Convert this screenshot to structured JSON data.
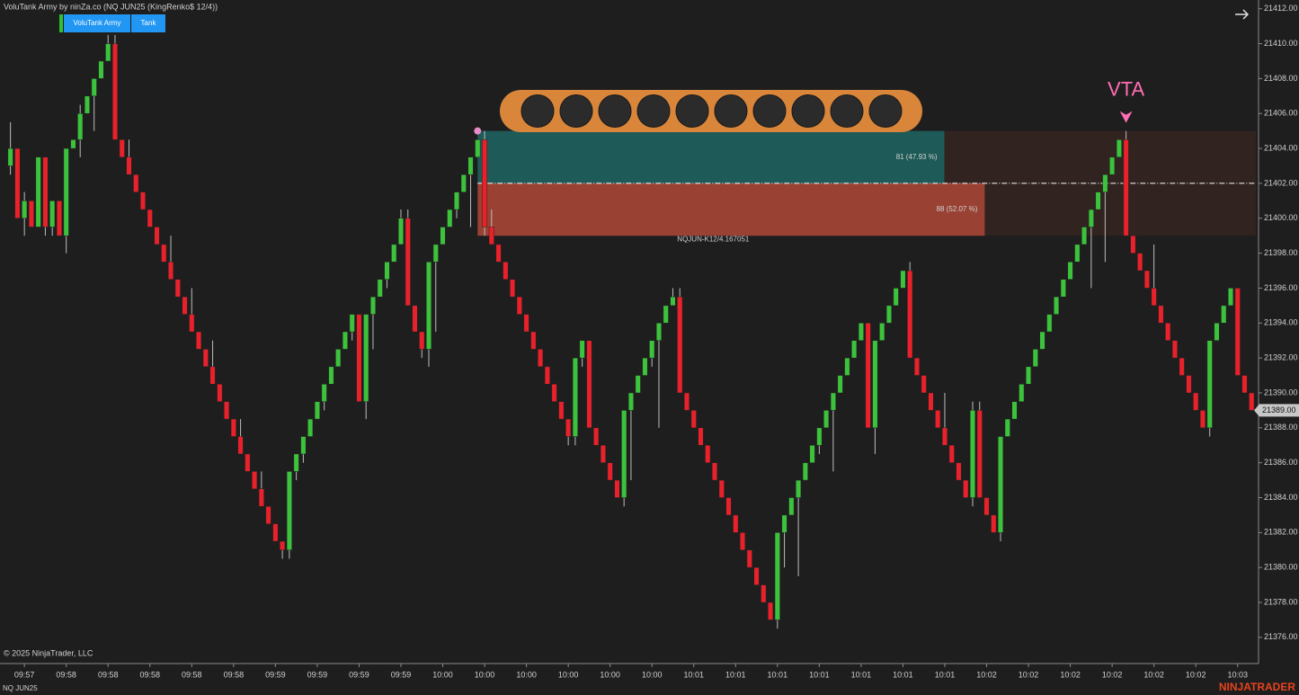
{
  "chart_data": {
    "type": "candlestick",
    "title": "VoluTank Army by ninZa.co (NQ JUN25 (KingRenko$ 12/4))",
    "buttons": [
      "VoluTank Army",
      "Tank"
    ],
    "copyright": "© 2025 NinjaTrader, LLC",
    "instrument": "NQ JUN25",
    "brand": "NINJATRADER",
    "up_color": "#3cc23c",
    "down_color": "#e8212b",
    "ylim": [
      21374.5,
      21412.5
    ],
    "yticks": [
      {
        "value": 21376,
        "label": "21376.00"
      },
      {
        "value": 21378,
        "label": "21378.00"
      },
      {
        "value": 21380,
        "label": "21380.00"
      },
      {
        "value": 21382,
        "label": "21382.00"
      },
      {
        "value": 21384,
        "label": "21384.00"
      },
      {
        "value": 21386,
        "label": "21386.00"
      },
      {
        "value": 21388,
        "label": "21388.00"
      },
      {
        "value": 21390,
        "label": "21390.00"
      },
      {
        "value": 21392,
        "label": "21392.00"
      },
      {
        "value": 21394,
        "label": "21394.00"
      },
      {
        "value": 21396,
        "label": "21396.00"
      },
      {
        "value": 21398,
        "label": "21398.00"
      },
      {
        "value": 21400,
        "label": "21400.00"
      },
      {
        "value": 21402,
        "label": "21402.00"
      },
      {
        "value": 21404,
        "label": "21404.00"
      },
      {
        "value": 21406,
        "label": "21406.00"
      },
      {
        "value": 21408,
        "label": "21408.00"
      },
      {
        "value": 21410,
        "label": "21410.00"
      },
      {
        "value": 21412,
        "label": "21412.00"
      }
    ],
    "xlim": [
      -1.5,
      179
    ],
    "xticks": [
      {
        "value": 2,
        "label": "09:57"
      },
      {
        "value": 8,
        "label": "09:58"
      },
      {
        "value": 14,
        "label": "09:58"
      },
      {
        "value": 20,
        "label": "09:58"
      },
      {
        "value": 26,
        "label": "09:58"
      },
      {
        "value": 32,
        "label": "09:58"
      },
      {
        "value": 38,
        "label": "09:59"
      },
      {
        "value": 44,
        "label": "09:59"
      },
      {
        "value": 50,
        "label": "09:59"
      },
      {
        "value": 56,
        "label": "09:59"
      },
      {
        "value": 62,
        "label": "10:00"
      },
      {
        "value": 68,
        "label": "10:00"
      },
      {
        "value": 74,
        "label": "10:00"
      },
      {
        "value": 80,
        "label": "10:00"
      },
      {
        "value": 86,
        "label": "10:00"
      },
      {
        "value": 92,
        "label": "10:00"
      },
      {
        "value": 98,
        "label": "10:01"
      },
      {
        "value": 104,
        "label": "10:01"
      },
      {
        "value": 110,
        "label": "10:01"
      },
      {
        "value": 116,
        "label": "10:01"
      },
      {
        "value": 122,
        "label": "10:01"
      },
      {
        "value": 128,
        "label": "10:01"
      },
      {
        "value": 134,
        "label": "10:01"
      },
      {
        "value": 140,
        "label": "10:02"
      },
      {
        "value": 146,
        "label": "10:02"
      },
      {
        "value": 152,
        "label": "10:02"
      },
      {
        "value": 158,
        "label": "10:02"
      },
      {
        "value": 164,
        "label": "10:02"
      },
      {
        "value": 170,
        "label": "10:02"
      },
      {
        "value": 176,
        "label": "10:03"
      }
    ],
    "last_price": {
      "value": 21389,
      "label": "21389.00"
    },
    "zone": {
      "start": 67,
      "top": 21405,
      "mid": 21402,
      "bottom": 21399,
      "buy": {
        "value": 81,
        "label": "81 (47.93 %)"
      },
      "sell": {
        "value": 88,
        "label": "88 (52.07 %)"
      },
      "name": "NQJUN-K12/4.167051"
    },
    "signals": [
      {
        "label": "VTA",
        "at": 160
      }
    ],
    "ohlc": [
      [
        21403,
        21405.5,
        21402.5,
        21404
      ],
      [
        21404,
        21404,
        21400,
        21400
      ],
      [
        21400,
        21401.5,
        21399,
        21401
      ],
      [
        21401,
        21401,
        21399.5,
        21399.5
      ],
      [
        21399.5,
        21403.5,
        21399.5,
        21403.5
      ],
      [
        21403.5,
        21403.5,
        21399,
        21399.5
      ],
      [
        21399.5,
        21401,
        21399,
        21401
      ],
      [
        21401,
        21401,
        21399,
        21399
      ],
      [
        21399,
        21404,
        21398,
        21404
      ],
      [
        21404,
        21404.5,
        21404,
        21404.5
      ],
      [
        21404.5,
        21406.5,
        21403.5,
        21406
      ],
      [
        21406,
        21407,
        21406,
        21407
      ],
      [
        21407,
        21408,
        21405,
        21408
      ],
      [
        21408,
        21409,
        21408,
        21409
      ],
      [
        21409,
        21410.5,
        21409,
        21410
      ],
      [
        21410,
        21410.5,
        21404.5,
        21404.5
      ],
      [
        21404.5,
        21404.5,
        21403.5,
        21403.5
      ],
      [
        21403.5,
        21404.5,
        21402.5,
        21402.5
      ],
      [
        21402.5,
        21402.5,
        21401.5,
        21401.5
      ],
      [
        21401.5,
        21401.5,
        21400.5,
        21400.5
      ],
      [
        21400.5,
        21400.5,
        21399.5,
        21399.5
      ],
      [
        21399.5,
        21399.5,
        21398.5,
        21398.5
      ],
      [
        21398.5,
        21398.5,
        21397.5,
        21397.5
      ],
      [
        21397.5,
        21399,
        21396.5,
        21396.5
      ],
      [
        21396.5,
        21396.5,
        21395.5,
        21395.5
      ],
      [
        21395.5,
        21395.5,
        21394.5,
        21394.5
      ],
      [
        21394.5,
        21396,
        21393.5,
        21393.5
      ],
      [
        21393.5,
        21393.5,
        21392.5,
        21392.5
      ],
      [
        21392.5,
        21392.5,
        21391.5,
        21391.5
      ],
      [
        21391.5,
        21393,
        21390.5,
        21390.5
      ],
      [
        21390.5,
        21390.5,
        21389.5,
        21389.5
      ],
      [
        21389.5,
        21389.5,
        21388.5,
        21388.5
      ],
      [
        21388.5,
        21388.5,
        21387.5,
        21387.5
      ],
      [
        21387.5,
        21388.5,
        21386.5,
        21386.5
      ],
      [
        21386.5,
        21386.5,
        21385.5,
        21385.5
      ],
      [
        21385.5,
        21385.5,
        21384.5,
        21384.5
      ],
      [
        21384.5,
        21385.5,
        21383.5,
        21383.5
      ],
      [
        21383.5,
        21383.5,
        21382.5,
        21382.5
      ],
      [
        21382.5,
        21382.5,
        21381.5,
        21381.5
      ],
      [
        21381.5,
        21381.5,
        21380.5,
        21381
      ],
      [
        21381,
        21385.5,
        21380.5,
        21385.5
      ],
      [
        21385.5,
        21386.5,
        21385,
        21386.5
      ],
      [
        21386.5,
        21387.5,
        21386,
        21387.5
      ],
      [
        21387.5,
        21388.5,
        21387.5,
        21388.5
      ],
      [
        21388.5,
        21389.5,
        21388.5,
        21389.5
      ],
      [
        21389.5,
        21390.5,
        21389,
        21390.5
      ],
      [
        21390.5,
        21391.5,
        21390.5,
        21391.5
      ],
      [
        21391.5,
        21392.5,
        21391.5,
        21392.5
      ],
      [
        21392.5,
        21393.5,
        21392.5,
        21393.5
      ],
      [
        21393.5,
        21394.5,
        21393,
        21394.5
      ],
      [
        21394.5,
        21394.5,
        21389.5,
        21389.5
      ],
      [
        21389.5,
        21394.5,
        21388.5,
        21394.5
      ],
      [
        21394.5,
        21395.5,
        21392.5,
        21395.5
      ],
      [
        21395.5,
        21396.5,
        21395.5,
        21396.5
      ],
      [
        21396.5,
        21397.5,
        21396,
        21397.5
      ],
      [
        21397.5,
        21398.5,
        21397.5,
        21398.5
      ],
      [
        21398.5,
        21400.5,
        21398.5,
        21400
      ],
      [
        21400,
        21400.5,
        21395,
        21395
      ],
      [
        21395,
        21395,
        21393.5,
        21393.5
      ],
      [
        21393.5,
        21393.5,
        21392,
        21392.5
      ],
      [
        21392.5,
        21397.5,
        21391.5,
        21397.5
      ],
      [
        21397.5,
        21398.5,
        21393.5,
        21398.5
      ],
      [
        21398.5,
        21399.5,
        21398.5,
        21399.5
      ],
      [
        21399.5,
        21400.5,
        21399.5,
        21400.5
      ],
      [
        21400.5,
        21401.5,
        21400,
        21401.5
      ],
      [
        21401.5,
        21402.5,
        21401.5,
        21402.5
      ],
      [
        21402.5,
        21403.5,
        21399.5,
        21403.5
      ],
      [
        21403.5,
        21404.5,
        21403.5,
        21404.5
      ],
      [
        21404.5,
        21405,
        21399,
        21399.5
      ],
      [
        21399.5,
        21400.5,
        21398.5,
        21398.5
      ],
      [
        21398.5,
        21398.5,
        21397.5,
        21397.5
      ],
      [
        21397.5,
        21397.5,
        21396.5,
        21396.5
      ],
      [
        21396.5,
        21396.5,
        21395.5,
        21395.5
      ],
      [
        21395.5,
        21395.5,
        21394.5,
        21394.5
      ],
      [
        21394.5,
        21394.5,
        21393.5,
        21393.5
      ],
      [
        21393.5,
        21393.5,
        21392.5,
        21392.5
      ],
      [
        21392.5,
        21392.5,
        21391.5,
        21391.5
      ],
      [
        21391.5,
        21391.5,
        21390.5,
        21390.5
      ],
      [
        21390.5,
        21390.5,
        21389.5,
        21389.5
      ],
      [
        21389.5,
        21389.5,
        21388.5,
        21388.5
      ],
      [
        21388.5,
        21388.5,
        21387,
        21387.5
      ],
      [
        21387.5,
        21392,
        21387,
        21392
      ],
      [
        21392,
        21393,
        21391.5,
        21393
      ],
      [
        21393,
        21393,
        21388,
        21388
      ],
      [
        21388,
        21388,
        21387,
        21387
      ],
      [
        21387,
        21387,
        21386,
        21386
      ],
      [
        21386,
        21386,
        21385,
        21385
      ],
      [
        21385,
        21385,
        21384,
        21384
      ],
      [
        21384,
        21389,
        21383.5,
        21389
      ],
      [
        21389,
        21390,
        21385,
        21390
      ],
      [
        21390,
        21391,
        21390,
        21391
      ],
      [
        21391,
        21392,
        21391,
        21392
      ],
      [
        21392,
        21393,
        21391.5,
        21393
      ],
      [
        21393,
        21394,
        21388,
        21394
      ],
      [
        21394,
        21395,
        21394,
        21395
      ],
      [
        21395,
        21396,
        21395,
        21395.5
      ],
      [
        21395.5,
        21396,
        21390,
        21390
      ],
      [
        21390,
        21390,
        21389,
        21389
      ],
      [
        21389,
        21389,
        21388,
        21388
      ],
      [
        21388,
        21388,
        21387,
        21387
      ],
      [
        21387,
        21387,
        21386,
        21386
      ],
      [
        21386,
        21386,
        21385,
        21385
      ],
      [
        21385,
        21385,
        21384,
        21384
      ],
      [
        21384,
        21384,
        21383,
        21383
      ],
      [
        21383,
        21383,
        21382,
        21382
      ],
      [
        21382,
        21382,
        21381,
        21381
      ],
      [
        21381,
        21381,
        21380,
        21380
      ],
      [
        21380,
        21380,
        21379,
        21379
      ],
      [
        21379,
        21379,
        21378,
        21378
      ],
      [
        21378,
        21378,
        21377,
        21377
      ],
      [
        21377,
        21382,
        21376.5,
        21382
      ],
      [
        21382,
        21383,
        21380,
        21383
      ],
      [
        21383,
        21384,
        21383,
        21384
      ],
      [
        21384,
        21385,
        21379.5,
        21385
      ],
      [
        21385,
        21386,
        21385,
        21386
      ],
      [
        21386,
        21387,
        21386,
        21387
      ],
      [
        21387,
        21388,
        21386.5,
        21388
      ],
      [
        21388,
        21389,
        21388,
        21389
      ],
      [
        21389,
        21390,
        21385.5,
        21390
      ],
      [
        21390,
        21391,
        21390,
        21391
      ],
      [
        21391,
        21392,
        21391,
        21392
      ],
      [
        21392,
        21393,
        21392,
        21393
      ],
      [
        21393,
        21394,
        21393,
        21394
      ],
      [
        21394,
        21394,
        21388,
        21388
      ],
      [
        21388,
        21393,
        21386.5,
        21393
      ],
      [
        21393,
        21394,
        21393,
        21394
      ],
      [
        21394,
        21395,
        21394,
        21395
      ],
      [
        21395,
        21396,
        21395,
        21396
      ],
      [
        21396,
        21397,
        21396,
        21397
      ],
      [
        21397,
        21397.5,
        21392,
        21392
      ],
      [
        21392,
        21392,
        21391,
        21391
      ],
      [
        21391,
        21391,
        21390,
        21390
      ],
      [
        21390,
        21390,
        21389,
        21389
      ],
      [
        21389,
        21389,
        21388,
        21388
      ],
      [
        21388,
        21390,
        21387,
        21387
      ],
      [
        21387,
        21387,
        21386,
        21386
      ],
      [
        21386,
        21386,
        21385,
        21385
      ],
      [
        21385,
        21385,
        21384,
        21384
      ],
      [
        21384,
        21389.5,
        21383.5,
        21389
      ],
      [
        21389,
        21389.5,
        21384,
        21384
      ],
      [
        21384,
        21384,
        21383,
        21383
      ],
      [
        21383,
        21383,
        21382,
        21382
      ],
      [
        21382,
        21387.5,
        21381.5,
        21387.5
      ],
      [
        21387.5,
        21388.5,
        21387.5,
        21388.5
      ],
      [
        21388.5,
        21389.5,
        21388.5,
        21389.5
      ],
      [
        21389.5,
        21390.5,
        21389.5,
        21390.5
      ],
      [
        21390.5,
        21391.5,
        21390.5,
        21391.5
      ],
      [
        21391.5,
        21392.5,
        21391.5,
        21392.5
      ],
      [
        21392.5,
        21393.5,
        21392.5,
        21393.5
      ],
      [
        21393.5,
        21394.5,
        21393.5,
        21394.5
      ],
      [
        21394.5,
        21395.5,
        21394.5,
        21395.5
      ],
      [
        21395.5,
        21396.5,
        21395.5,
        21396.5
      ],
      [
        21396.5,
        21397.5,
        21396.5,
        21397.5
      ],
      [
        21397.5,
        21398.5,
        21397.5,
        21398.5
      ],
      [
        21398.5,
        21399.5,
        21398.5,
        21399.5
      ],
      [
        21399.5,
        21400.5,
        21396,
        21400.5
      ],
      [
        21400.5,
        21401.5,
        21400.5,
        21401.5
      ],
      [
        21401.5,
        21402.5,
        21397.5,
        21402.5
      ],
      [
        21402.5,
        21403.5,
        21402.5,
        21403.5
      ],
      [
        21403.5,
        21404.5,
        21403.5,
        21404.5
      ],
      [
        21404.5,
        21405,
        21399,
        21399
      ],
      [
        21399,
        21399,
        21398,
        21398
      ],
      [
        21398,
        21398,
        21397,
        21397
      ],
      [
        21397,
        21397,
        21396,
        21396
      ],
      [
        21396,
        21398.5,
        21395,
        21395
      ],
      [
        21395,
        21395,
        21394,
        21394
      ],
      [
        21394,
        21394,
        21393,
        21393
      ],
      [
        21393,
        21393,
        21392,
        21392
      ],
      [
        21392,
        21392,
        21391,
        21391
      ],
      [
        21391,
        21391,
        21390,
        21390
      ],
      [
        21390,
        21390,
        21389,
        21389
      ],
      [
        21389,
        21389,
        21388,
        21388
      ],
      [
        21388,
        21393,
        21387.5,
        21393
      ],
      [
        21393,
        21394,
        21393,
        21394
      ],
      [
        21394,
        21395,
        21394,
        21395
      ],
      [
        21395,
        21396,
        21395,
        21396
      ],
      [
        21396,
        21396,
        21391,
        21391
      ],
      [
        21391,
        21391,
        21390,
        21390
      ],
      [
        21390,
        21390,
        21389,
        21389
      ]
    ]
  }
}
